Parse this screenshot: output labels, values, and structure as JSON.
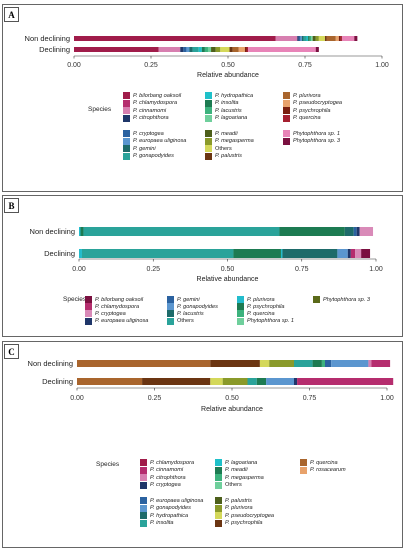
{
  "chart_data": [
    {
      "panel": "A",
      "type": "stacked-bar-horizontal",
      "xlabel": "Relative abundance",
      "xlim": [
        0,
        1
      ],
      "xticks": [
        "0.00",
        "0.25",
        "0.50",
        "0.75",
        "1.00"
      ],
      "categories": [
        "Non declining",
        "Declining"
      ],
      "legend_title": "Species",
      "series": [
        {
          "name": "P. bilorbang oaksoil",
          "color": "#a01c4a",
          "values": [
            0.655,
            0.275
          ]
        },
        {
          "name": "P. chlamydospora",
          "color": "#b52d6e",
          "values": [
            0,
            0
          ]
        },
        {
          "name": "P. cinnamomi",
          "color": "#d77fb0",
          "values": [
            0.07,
            0.07
          ]
        },
        {
          "name": "P. citrophthora",
          "color": "#1f3669",
          "values": [
            0.005,
            0.01
          ]
        },
        {
          "name": "P. cryptogea",
          "color": "#2b62a0",
          "values": [
            0.005,
            0.01
          ]
        },
        {
          "name": "P. europaea uliginosa",
          "color": "#5b96cf",
          "values": [
            0.005,
            0.01
          ]
        },
        {
          "name": "P. gemini",
          "color": "#1e6b6a",
          "values": [
            0.005,
            0.01
          ]
        },
        {
          "name": "P. gonapodyides",
          "color": "#2aa39a",
          "values": [
            0.01,
            0.02
          ]
        },
        {
          "name": "P. hydropathica",
          "color": "#1fc0c9",
          "values": [
            0.005,
            0.01
          ]
        },
        {
          "name": "P. insolita",
          "color": "#1d7b52",
          "values": [
            0.005,
            0.01
          ]
        },
        {
          "name": "P. lacustris",
          "color": "#3cb27d",
          "values": [
            0.005,
            0.01
          ]
        },
        {
          "name": "P. lagoariana",
          "color": "#6fcf9c",
          "values": [
            0.005,
            0.01
          ]
        },
        {
          "name": "P. meadii",
          "color": "#4d5f1b",
          "values": [
            0.01,
            0.015
          ]
        },
        {
          "name": "P. megasperma",
          "color": "#8a9a2a",
          "values": [
            0.01,
            0.015
          ]
        },
        {
          "name": "Others",
          "color": "#d4d85a",
          "values": [
            0.02,
            0.03
          ]
        },
        {
          "name": "P. palustris",
          "color": "#6b3512",
          "values": [
            0.005,
            0.01
          ]
        },
        {
          "name": "P. plurivora",
          "color": "#a9652d",
          "values": [
            0.03,
            0.02
          ]
        },
        {
          "name": "P. pseudocryptogea",
          "color": "#e8a26b",
          "values": [
            0.01,
            0.02
          ]
        },
        {
          "name": "P. psychrophila",
          "color": "#7a1f10",
          "values": [
            0.005,
            0.005
          ]
        },
        {
          "name": "P. quercina",
          "color": "#a52030",
          "values": [
            0.005,
            0.005
          ]
        },
        {
          "name": "Phytophthora sp. 1",
          "color": "#e884b8",
          "values": [
            0.04,
            0.22
          ]
        },
        {
          "name": "Phytophthora sp. 3",
          "color": "#7a1040",
          "values": [
            0.01,
            0.01
          ]
        }
      ]
    },
    {
      "panel": "B",
      "type": "stacked-bar-horizontal",
      "xlabel": "Relative abundance",
      "xlim": [
        0,
        1
      ],
      "xticks": [
        "0.00",
        "0.25",
        "0.50",
        "0.75",
        "1.00"
      ],
      "categories": [
        "Non declining",
        "Declining"
      ],
      "legend_title": "Species",
      "series": [
        {
          "name": "P. bilorbang oaksoil",
          "color": "#7a1040",
          "values": [
            0.005,
            0.005
          ]
        },
        {
          "name": "P. chlamydospora",
          "color": "#b52d6e",
          "values": [
            0.005,
            0.005
          ]
        },
        {
          "name": "P. cryptogea",
          "color": "#d98ab8",
          "values": [
            0.005,
            0.005
          ]
        },
        {
          "name": "P. europaea uliginosa",
          "color": "#1f3669",
          "values": [
            0.005,
            0.005
          ]
        },
        {
          "name": "P. gemini",
          "color": "#2b62a0",
          "values": [
            0.005,
            0.005
          ]
        },
        {
          "name": "P. gonapodyides",
          "color": "#5b96cf",
          "values": [
            0.005,
            0.005
          ]
        },
        {
          "name": "P. lacustris",
          "color": "#1e6b6a",
          "values": [
            0.005,
            0.005
          ]
        },
        {
          "name": "Others",
          "color": "#2aa39a",
          "values": [
            0.005,
            0.005
          ]
        },
        {
          "name": "P. plurivora",
          "color": "#23bccc",
          "values": [
            0.005,
            0.005
          ]
        },
        {
          "name": "P. psychrophila",
          "color": "#1d7b52",
          "values": [
            0.005,
            0.005
          ]
        },
        {
          "name": "P. quercina",
          "color": "#3cb27d",
          "values": [
            0.005,
            0.005
          ]
        },
        {
          "name": "Phytophthora sp. 1",
          "color": "#6fcf9c",
          "values": [
            0.005,
            0.005
          ]
        },
        {
          "name": "Phytophthora sp. 3",
          "color": "#5b6a1a",
          "values": [
            0.005,
            0.005
          ]
        }
      ],
      "bars": [
        [
          {
            "series": "P. plurivora",
            "value": 0.005
          },
          {
            "series": "P. psychrophila",
            "value": 0.01
          },
          {
            "series": "Others",
            "value": 0.66
          },
          {
            "series": "P. psychrophila",
            "value": 0.22
          },
          {
            "series": "P. lacustris",
            "value": 0.03
          },
          {
            "series": "P. gemini",
            "value": 0.01
          },
          {
            "series": "P. europaea uliginosa",
            "value": 0.01
          },
          {
            "series": "P. cryptogea",
            "value": 0.045
          }
        ],
        [
          {
            "series": "P. plurivora",
            "value": 0.01
          },
          {
            "series": "Others",
            "value": 0.51
          },
          {
            "series": "P. psychrophila",
            "value": 0.16
          },
          {
            "series": "P. plurivora",
            "value": 0.005
          },
          {
            "series": "P. lacustris",
            "value": 0.185
          },
          {
            "series": "P. gonapodyides",
            "value": 0.035
          },
          {
            "series": "P. europaea uliginosa",
            "value": 0.01
          },
          {
            "series": "P. chlamydospora",
            "value": 0.015
          },
          {
            "series": "P. cryptogea",
            "value": 0.02
          },
          {
            "series": "P. bilorbang oaksoil",
            "value": 0.03
          }
        ]
      ]
    },
    {
      "panel": "C",
      "type": "stacked-bar-horizontal",
      "xlabel": "Relative abundance",
      "xlim": [
        0,
        1
      ],
      "xticks": [
        "0.00",
        "0.25",
        "0.50",
        "0.75",
        "1.00"
      ],
      "categories": [
        "Non declining",
        "Declining"
      ],
      "legend_title": "Species",
      "series": [
        {
          "name": "P. chlamydospora",
          "color": "#a01c4a"
        },
        {
          "name": "P. cinnamomi",
          "color": "#b52d6e"
        },
        {
          "name": "P. citrophthora",
          "color": "#d77fb0"
        },
        {
          "name": "P. cryptogea",
          "color": "#1f3669"
        },
        {
          "name": "P. europaea uliginosa",
          "color": "#2b62a0"
        },
        {
          "name": "P. gonapodyides",
          "color": "#5b96cf"
        },
        {
          "name": "P. hydropathica",
          "color": "#1e6b6a"
        },
        {
          "name": "P. insolita",
          "color": "#2aa39a"
        },
        {
          "name": "P. lagoariana",
          "color": "#1fc0c9"
        },
        {
          "name": "P. meadii",
          "color": "#1d7b52"
        },
        {
          "name": "P. megasperma",
          "color": "#3cb27d"
        },
        {
          "name": "Others",
          "color": "#6fcf9c"
        },
        {
          "name": "P. palustris",
          "color": "#4d5f1b"
        },
        {
          "name": "P. plurivora",
          "color": "#8a9a2a"
        },
        {
          "name": "P. pseudocryptogea",
          "color": "#d4d85a"
        },
        {
          "name": "P. psychrophila",
          "color": "#6b3512"
        },
        {
          "name": "P. quercina",
          "color": "#a9652d"
        },
        {
          "name": "P. rosacearum",
          "color": "#e8a26b"
        }
      ],
      "bars": [
        [
          {
            "series": "P. quercina",
            "value": 0.43
          },
          {
            "series": "P. psychrophila",
            "value": 0.16
          },
          {
            "series": "P. pseudocryptogea",
            "value": 0.03
          },
          {
            "series": "P. plurivora",
            "value": 0.08
          },
          {
            "series": "P. insolita",
            "value": 0.06
          },
          {
            "series": "P. meadii",
            "value": 0.03
          },
          {
            "series": "P. megasperma",
            "value": 0.01
          },
          {
            "series": "P. europaea uliginosa",
            "value": 0.02
          },
          {
            "series": "P. gonapodyides",
            "value": 0.12
          },
          {
            "series": "P. citrophthora",
            "value": 0.01
          },
          {
            "series": "P. cinnamomi",
            "value": 0.06
          }
        ],
        [
          {
            "series": "P. quercina",
            "value": 0.21
          },
          {
            "series": "P. psychrophila",
            "value": 0.22
          },
          {
            "series": "P. pseudocryptogea",
            "value": 0.04
          },
          {
            "series": "P. plurivora",
            "value": 0.08
          },
          {
            "series": "P. insolita",
            "value": 0.03
          },
          {
            "series": "P. meadii",
            "value": 0.03
          },
          {
            "series": "P. gonapodyides",
            "value": 0.09
          },
          {
            "series": "P. cryptogea",
            "value": 0.01
          },
          {
            "series": "P. cinnamomi",
            "value": 0.31
          }
        ]
      ]
    }
  ],
  "panels": [
    {
      "letter": "A",
      "legend_columns": [
        [
          "P. bilorbang oaksoil",
          "P. chlamydospora",
          "P. cinnamomi",
          "P. citrophthora",
          "",
          "P. cryptogea",
          "P. europaea uliginosa",
          "P. gemini",
          "P. gonapodyides"
        ],
        [
          "P. hydropathica",
          "P. insolita",
          "P. lacustris",
          "P. lagoariana",
          "",
          "P. meadii",
          "P. megasperma",
          "Others",
          "P. palustris"
        ],
        [
          "P. plurivora",
          "P. pseudocryptogea",
          "P. psychrophila",
          "P. quercina",
          "",
          "Phytophthora sp. 1",
          "Phytophthora sp. 3"
        ]
      ]
    },
    {
      "letter": "B",
      "legend_columns": [
        [
          "P. bilorbang oaksoil",
          "P. chlamydospora",
          "P. cryptogea",
          "P. europaea uliginosa"
        ],
        [
          "P. gemini",
          "P. gonapodyides",
          "P. lacustris",
          "Others"
        ],
        [
          "P. plurivora",
          "P. psychrophila",
          "P. quercina",
          "Phytophthora sp. 1"
        ],
        [
          "Phytophthora sp. 3"
        ]
      ]
    },
    {
      "letter": "C",
      "legend_columns": [
        [
          "P. chlamydospora",
          "P. cinnamomi",
          "P. citrophthora",
          "P. cryptogea",
          "",
          "P. europaea uliginosa",
          "P. gonapodyides",
          "P. hydropathica",
          "P. insolita"
        ],
        [
          "P. lagoariana",
          "P. meadii",
          "P. megasperma",
          "Others",
          "",
          "P. palustris",
          "P. plurivora",
          "P. pseudocryptogea",
          "P. psychrophila"
        ],
        [
          "P. quercina",
          "P. rosacearum"
        ]
      ]
    }
  ]
}
